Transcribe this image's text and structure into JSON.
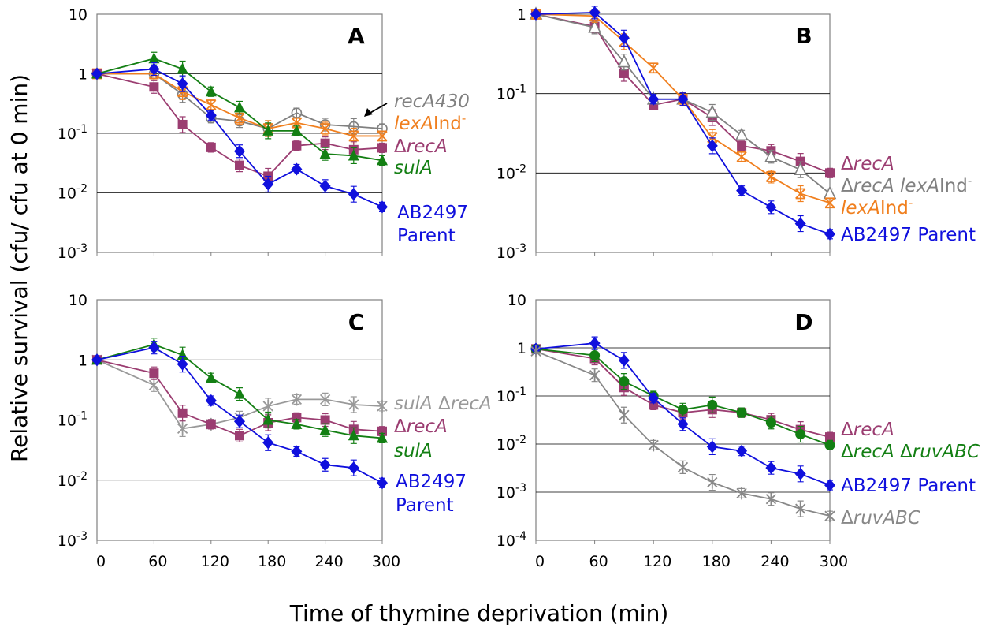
{
  "figure": {
    "ylabel": "Relative survival (cfu/ cfu at 0 min)",
    "xlabel": "Time of thymine deprivation (min)"
  },
  "chart_data": [
    {
      "type": "line",
      "panel": "A",
      "scale": "log",
      "xlim": [
        0,
        300
      ],
      "ylim": [
        0.001,
        10
      ],
      "y_ticks": [
        {
          "base": "10",
          "exp": ""
        },
        {
          "base": "1",
          "exp": ""
        },
        {
          "base": "10",
          "exp": "-1"
        },
        {
          "base": "10",
          "exp": "-2"
        },
        {
          "base": "10",
          "exp": "-3"
        }
      ],
      "x_tick_labels": [],
      "annotation": "recA430 arrow",
      "series": [
        {
          "name": "recA430",
          "color": "#808080",
          "marker": "circle-open",
          "x": [
            0,
            60,
            90,
            120,
            150,
            180,
            210,
            240,
            270,
            300
          ],
          "y": [
            1,
            1.0,
            0.45,
            0.18,
            0.16,
            0.12,
            0.22,
            0.14,
            0.13,
            0.12
          ],
          "labels": [
            {
              "parts": [
                {
                  "t": "recA430",
                  "i": true
                }
              ]
            }
          ]
        },
        {
          "name": "lexA Ind-",
          "color": "#f07f1e",
          "marker": "x",
          "x": [
            0,
            60,
            90,
            120,
            150,
            180,
            210,
            240,
            270,
            300
          ],
          "y": [
            1,
            1.0,
            0.5,
            0.3,
            0.18,
            0.12,
            0.15,
            0.12,
            0.09,
            0.09
          ],
          "labels": [
            {
              "parts": [
                {
                  "t": "lexA",
                  "i": true
                },
                {
                  "t": "Ind"
                },
                {
                  "t": "-",
                  "sup": true
                }
              ]
            }
          ]
        },
        {
          "name": "ΔrecA",
          "color": "#9b3d71",
          "marker": "square",
          "x": [
            0,
            60,
            90,
            120,
            150,
            180,
            210,
            240,
            270,
            300
          ],
          "y": [
            1,
            0.6,
            0.14,
            0.058,
            0.029,
            0.019,
            0.062,
            0.068,
            0.053,
            0.057
          ],
          "labels": [
            {
              "parts": [
                {
                  "t": "Δ"
                },
                {
                  "t": "recA",
                  "i": true
                }
              ]
            }
          ]
        },
        {
          "name": "sulA",
          "color": "#137f13",
          "marker": "triangle",
          "x": [
            0,
            60,
            90,
            120,
            150,
            180,
            210,
            240,
            270,
            300
          ],
          "y": [
            1,
            1.8,
            1.2,
            0.5,
            0.27,
            0.11,
            0.11,
            0.045,
            0.042,
            0.035
          ],
          "labels": [
            {
              "parts": [
                {
                  "t": "sulA",
                  "i": true
                }
              ]
            }
          ]
        },
        {
          "name": "AB2497 Parent",
          "color": "#1010dd",
          "marker": "diamond",
          "x": [
            0,
            60,
            90,
            120,
            150,
            180,
            210,
            240,
            270,
            300
          ],
          "y": [
            1,
            1.2,
            0.68,
            0.2,
            0.05,
            0.014,
            0.025,
            0.013,
            0.0095,
            0.0058
          ],
          "labels": [
            {
              "parts": [
                {
                  "t": "AB2497"
                }
              ]
            },
            {
              "parts": [
                {
                  "t": "Parent"
                }
              ]
            }
          ]
        }
      ]
    },
    {
      "type": "line",
      "panel": "B",
      "scale": "log",
      "xlim": [
        0,
        300
      ],
      "ylim": [
        0.001,
        1
      ],
      "y_ticks": [
        {
          "base": "1",
          "exp": ""
        },
        {
          "base": "10",
          "exp": "-1"
        },
        {
          "base": "10",
          "exp": "-2"
        },
        {
          "base": "10",
          "exp": "-3"
        }
      ],
      "x_tick_labels": [],
      "series": [
        {
          "name": "ΔrecA",
          "color": "#9b3d71",
          "marker": "square",
          "x": [
            0,
            60,
            90,
            120,
            150,
            180,
            210,
            240,
            270,
            300
          ],
          "y": [
            1,
            0.7,
            0.18,
            0.072,
            0.085,
            0.05,
            0.022,
            0.019,
            0.014,
            0.01
          ],
          "labels": [
            {
              "parts": [
                {
                  "t": "Δ"
                },
                {
                  "t": "recA",
                  "i": true
                }
              ]
            }
          ]
        },
        {
          "name": "ΔrecA lexA Ind-",
          "color": "#808080",
          "marker": "triangle-open",
          "x": [
            0,
            60,
            90,
            120,
            150,
            180,
            210,
            240,
            270,
            300
          ],
          "y": [
            1,
            0.68,
            0.25,
            0.085,
            0.085,
            0.058,
            0.03,
            0.016,
            0.011,
            0.0055
          ],
          "labels": [
            {
              "parts": [
                {
                  "t": "Δ"
                },
                {
                  "t": "recA",
                  "i": true
                },
                {
                  "t": " "
                },
                {
                  "t": "lexA",
                  "i": true
                },
                {
                  "t": "Ind"
                },
                {
                  "t": "-",
                  "sup": true
                }
              ]
            }
          ]
        },
        {
          "name": "lexA Ind-",
          "color": "#f07f1e",
          "marker": "x",
          "x": [
            0,
            60,
            90,
            120,
            150,
            180,
            210,
            240,
            270,
            300
          ],
          "y": [
            1,
            0.95,
            0.45,
            0.21,
            0.085,
            0.028,
            0.016,
            0.009,
            0.0055,
            0.0042
          ],
          "labels": [
            {
              "parts": [
                {
                  "t": "lexA",
                  "i": true
                },
                {
                  "t": "Ind"
                },
                {
                  "t": "-",
                  "sup": true
                }
              ]
            }
          ]
        },
        {
          "name": "AB2497 Parent",
          "color": "#1010dd",
          "marker": "diamond",
          "x": [
            0,
            60,
            90,
            120,
            150,
            180,
            210,
            240,
            270,
            300
          ],
          "y": [
            1,
            1.05,
            0.5,
            0.085,
            0.085,
            0.022,
            0.006,
            0.0037,
            0.0023,
            0.0017
          ],
          "labels": [
            {
              "parts": [
                {
                  "t": "AB2497 Parent"
                }
              ]
            }
          ]
        }
      ]
    },
    {
      "type": "line",
      "panel": "C",
      "scale": "log",
      "xlim": [
        0,
        300
      ],
      "ylim": [
        0.001,
        10
      ],
      "y_ticks": [
        {
          "base": "10",
          "exp": ""
        },
        {
          "base": "1",
          "exp": ""
        },
        {
          "base": "10",
          "exp": "-1"
        },
        {
          "base": "10",
          "exp": "-2"
        },
        {
          "base": "10",
          "exp": "-3"
        }
      ],
      "x_tick_labels": [
        "0",
        "60",
        "120",
        "180",
        "240",
        "300"
      ],
      "series": [
        {
          "name": "sulA ΔrecA",
          "color": "#999999",
          "marker": "star",
          "x": [
            0,
            60,
            90,
            120,
            150,
            180,
            210,
            240,
            270,
            300
          ],
          "y": [
            1,
            0.38,
            0.072,
            0.085,
            0.11,
            0.17,
            0.22,
            0.22,
            0.18,
            0.17
          ],
          "labels": [
            {
              "parts": [
                {
                  "t": "sulA",
                  "i": true
                },
                {
                  "t": " Δ"
                },
                {
                  "t": "recA",
                  "i": true
                }
              ]
            }
          ]
        },
        {
          "name": "ΔrecA",
          "color": "#9b3d71",
          "marker": "square",
          "x": [
            0,
            60,
            90,
            120,
            150,
            180,
            210,
            240,
            270,
            300
          ],
          "y": [
            1,
            0.6,
            0.13,
            0.085,
            0.055,
            0.09,
            0.11,
            0.1,
            0.07,
            0.065
          ],
          "labels": [
            {
              "parts": [
                {
                  "t": "Δ"
                },
                {
                  "t": "recA",
                  "i": true
                }
              ]
            }
          ]
        },
        {
          "name": "sulA",
          "color": "#137f13",
          "marker": "triangle",
          "x": [
            0,
            60,
            90,
            120,
            150,
            180,
            210,
            240,
            270,
            300
          ],
          "y": [
            1,
            1.8,
            1.2,
            0.5,
            0.27,
            0.1,
            0.085,
            0.068,
            0.055,
            0.05
          ],
          "labels": [
            {
              "parts": [
                {
                  "t": "sulA",
                  "i": true
                }
              ]
            }
          ]
        },
        {
          "name": "AB2497 Parent",
          "color": "#1010dd",
          "marker": "diamond",
          "x": [
            0,
            60,
            90,
            120,
            150,
            180,
            210,
            240,
            270,
            300
          ],
          "y": [
            1,
            1.6,
            0.85,
            0.21,
            0.095,
            0.042,
            0.03,
            0.018,
            0.016,
            0.009
          ],
          "labels": [
            {
              "parts": [
                {
                  "t": "AB2497"
                }
              ]
            },
            {
              "parts": [
                {
                  "t": "Parent"
                }
              ]
            }
          ]
        }
      ]
    },
    {
      "type": "line",
      "panel": "D",
      "scale": "log",
      "xlim": [
        0,
        300
      ],
      "ylim": [
        0.0001,
        10
      ],
      "y_ticks": [
        {
          "base": "10",
          "exp": ""
        },
        {
          "base": "1",
          "exp": ""
        },
        {
          "base": "10",
          "exp": "-1"
        },
        {
          "base": "10",
          "exp": "-2"
        },
        {
          "base": "10",
          "exp": "-3"
        },
        {
          "base": "10",
          "exp": "-4"
        }
      ],
      "x_tick_labels": [
        "0",
        "60",
        "120",
        "180",
        "240",
        "300"
      ],
      "series": [
        {
          "name": "ΔrecA",
          "color": "#9b3d71",
          "marker": "square",
          "x": [
            0,
            60,
            90,
            120,
            150,
            180,
            210,
            240,
            270,
            300
          ],
          "y": [
            0.95,
            0.6,
            0.15,
            0.065,
            0.045,
            0.052,
            0.045,
            0.032,
            0.02,
            0.014
          ],
          "labels": [
            {
              "parts": [
                {
                  "t": "Δ"
                },
                {
                  "t": "recA",
                  "i": true
                }
              ]
            }
          ]
        },
        {
          "name": "ΔrecA ΔruvABC",
          "color": "#137f13",
          "marker": "circle",
          "x": [
            0,
            60,
            90,
            120,
            150,
            180,
            210,
            240,
            270,
            300
          ],
          "y": [
            0.95,
            0.7,
            0.2,
            0.1,
            0.052,
            0.065,
            0.045,
            0.028,
            0.016,
            0.0095
          ],
          "labels": [
            {
              "parts": [
                {
                  "t": "Δ"
                },
                {
                  "t": "recA",
                  "i": true
                },
                {
                  "t": " Δ"
                },
                {
                  "t": "ruvABC",
                  "i": true
                }
              ]
            }
          ]
        },
        {
          "name": "AB2497 Parent",
          "color": "#1010dd",
          "marker": "diamond",
          "x": [
            0,
            60,
            90,
            120,
            150,
            180,
            210,
            240,
            270,
            300
          ],
          "y": [
            0.95,
            1.25,
            0.55,
            0.09,
            0.026,
            0.0088,
            0.0072,
            0.0032,
            0.0024,
            0.0014
          ],
          "labels": [
            {
              "parts": [
                {
                  "t": "AB2497 Parent"
                }
              ]
            }
          ]
        },
        {
          "name": "ΔruvABC",
          "color": "#888888",
          "marker": "star",
          "x": [
            0,
            60,
            90,
            120,
            150,
            180,
            210,
            240,
            270,
            300
          ],
          "y": [
            0.85,
            0.27,
            0.04,
            0.0095,
            0.0033,
            0.0016,
            0.00095,
            0.00072,
            0.00045,
            0.00032
          ],
          "labels": [
            {
              "parts": [
                {
                  "t": "Δ"
                },
                {
                  "t": "ruvABC",
                  "i": true
                }
              ]
            }
          ]
        }
      ]
    }
  ]
}
